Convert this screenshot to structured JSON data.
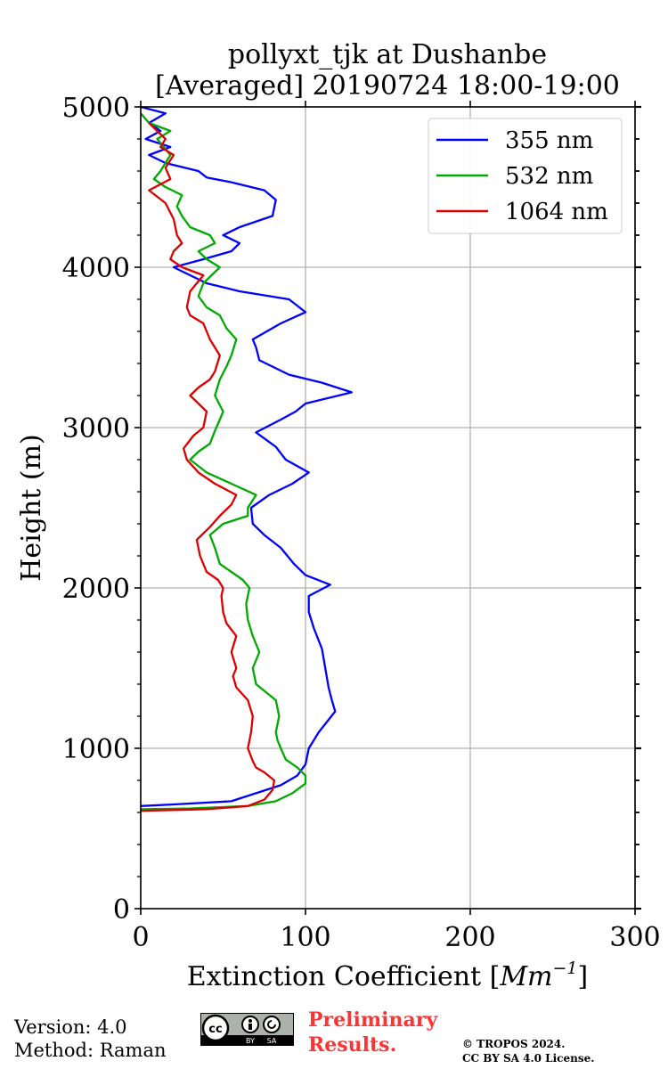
{
  "chart_data": {
    "type": "line",
    "title": "pollyxt_tjk at Dushanbe",
    "subtitle": "[Averaged] 20190724 18:00-19:00",
    "xlabel_prefix": "Extinction Coefficient [",
    "xlabel_unit": "Mm",
    "xlabel_exp": "−1",
    "xlabel_suffix": "]",
    "ylabel": "Height (m)",
    "xlim": [
      0,
      300
    ],
    "ylim": [
      0,
      5000
    ],
    "xticks": [
      0,
      100,
      200,
      300
    ],
    "yticks": [
      0,
      1000,
      2000,
      3000,
      4000,
      5000
    ],
    "xtick_labels": [
      "0",
      "100",
      "200",
      "300"
    ],
    "ytick_labels": [
      "0",
      "1000",
      "2000",
      "3000",
      "4000",
      "5000"
    ],
    "grid": true,
    "legend_position": "top-right",
    "series": [
      {
        "name": "355 nm",
        "color": "#0000ff",
        "points": [
          [
            0,
            640
          ],
          [
            20,
            650
          ],
          [
            55,
            670
          ],
          [
            70,
            720
          ],
          [
            85,
            770
          ],
          [
            95,
            830
          ],
          [
            100,
            900
          ],
          [
            102,
            1000
          ],
          [
            105,
            1050
          ],
          [
            108,
            1100
          ],
          [
            118,
            1230
          ],
          [
            116,
            1300
          ],
          [
            114,
            1380
          ],
          [
            112,
            1500
          ],
          [
            110,
            1620
          ],
          [
            105,
            1750
          ],
          [
            102,
            1850
          ],
          [
            102,
            1950
          ],
          [
            115,
            2020
          ],
          [
            100,
            2080
          ],
          [
            93,
            2150
          ],
          [
            85,
            2250
          ],
          [
            75,
            2330
          ],
          [
            68,
            2400
          ],
          [
            67,
            2500
          ],
          [
            78,
            2580
          ],
          [
            92,
            2650
          ],
          [
            102,
            2720
          ],
          [
            88,
            2800
          ],
          [
            82,
            2880
          ],
          [
            70,
            2970
          ],
          [
            85,
            3050
          ],
          [
            94,
            3100
          ],
          [
            100,
            3150
          ],
          [
            128,
            3220
          ],
          [
            110,
            3280
          ],
          [
            90,
            3330
          ],
          [
            72,
            3420
          ],
          [
            70,
            3500
          ],
          [
            68,
            3550
          ],
          [
            85,
            3650
          ],
          [
            100,
            3720
          ],
          [
            90,
            3800
          ],
          [
            60,
            3850
          ],
          [
            40,
            3900
          ],
          [
            30,
            3950
          ],
          [
            20,
            4000
          ],
          [
            38,
            4050
          ],
          [
            55,
            4100
          ],
          [
            60,
            4150
          ],
          [
            50,
            4200
          ],
          [
            60,
            4250
          ],
          [
            80,
            4320
          ],
          [
            82,
            4420
          ],
          [
            75,
            4480
          ],
          [
            55,
            4530
          ],
          [
            40,
            4560
          ],
          [
            35,
            4600
          ],
          [
            15,
            4650
          ],
          [
            5,
            4700
          ],
          [
            18,
            4750
          ],
          [
            3,
            4800
          ],
          [
            12,
            4850
          ],
          [
            5,
            4900
          ],
          [
            15,
            4960
          ],
          [
            0,
            5000
          ]
        ]
      },
      {
        "name": "532 nm",
        "color": "#00aa00",
        "points": [
          [
            0,
            620
          ],
          [
            30,
            625
          ],
          [
            65,
            640
          ],
          [
            82,
            670
          ],
          [
            92,
            720
          ],
          [
            100,
            780
          ],
          [
            100,
            830
          ],
          [
            95,
            880
          ],
          [
            88,
            930
          ],
          [
            85,
            1000
          ],
          [
            83,
            1050
          ],
          [
            82,
            1100
          ],
          [
            84,
            1200
          ],
          [
            82,
            1300
          ],
          [
            70,
            1400
          ],
          [
            68,
            1500
          ],
          [
            72,
            1600
          ],
          [
            68,
            1700
          ],
          [
            65,
            1800
          ],
          [
            64,
            1900
          ],
          [
            66,
            2000
          ],
          [
            62,
            2050
          ],
          [
            55,
            2100
          ],
          [
            48,
            2150
          ],
          [
            45,
            2250
          ],
          [
            42,
            2330
          ],
          [
            50,
            2400
          ],
          [
            65,
            2450
          ],
          [
            65,
            2500
          ],
          [
            70,
            2580
          ],
          [
            55,
            2650
          ],
          [
            40,
            2720
          ],
          [
            30,
            2800
          ],
          [
            35,
            2850
          ],
          [
            42,
            2900
          ],
          [
            45,
            2980
          ],
          [
            48,
            3050
          ],
          [
            50,
            3100
          ],
          [
            45,
            3200
          ],
          [
            48,
            3300
          ],
          [
            52,
            3380
          ],
          [
            55,
            3450
          ],
          [
            58,
            3550
          ],
          [
            52,
            3620
          ],
          [
            48,
            3700
          ],
          [
            40,
            3750
          ],
          [
            35,
            3820
          ],
          [
            38,
            3900
          ],
          [
            48,
            4000
          ],
          [
            40,
            4050
          ],
          [
            35,
            4100
          ],
          [
            45,
            4150
          ],
          [
            42,
            4200
          ],
          [
            30,
            4250
          ],
          [
            25,
            4320
          ],
          [
            22,
            4380
          ],
          [
            25,
            4450
          ],
          [
            15,
            4500
          ],
          [
            8,
            4550
          ],
          [
            12,
            4600
          ],
          [
            18,
            4700
          ],
          [
            10,
            4800
          ],
          [
            18,
            4850
          ],
          [
            5,
            4900
          ],
          [
            0,
            4960
          ]
        ]
      },
      {
        "name": "1064 nm",
        "color": "#dd0000",
        "points": [
          [
            0,
            610
          ],
          [
            40,
            620
          ],
          [
            65,
            640
          ],
          [
            75,
            680
          ],
          [
            80,
            740
          ],
          [
            81,
            800
          ],
          [
            75,
            850
          ],
          [
            70,
            880
          ],
          [
            68,
            920
          ],
          [
            65,
            1000
          ],
          [
            66,
            1050
          ],
          [
            67,
            1100
          ],
          [
            68,
            1200
          ],
          [
            65,
            1300
          ],
          [
            58,
            1380
          ],
          [
            56,
            1450
          ],
          [
            58,
            1500
          ],
          [
            55,
            1600
          ],
          [
            58,
            1700
          ],
          [
            52,
            1780
          ],
          [
            50,
            1850
          ],
          [
            49,
            1950
          ],
          [
            50,
            2000
          ],
          [
            47,
            2050
          ],
          [
            40,
            2100
          ],
          [
            36,
            2200
          ],
          [
            34,
            2300
          ],
          [
            42,
            2380
          ],
          [
            48,
            2450
          ],
          [
            55,
            2520
          ],
          [
            58,
            2580
          ],
          [
            45,
            2650
          ],
          [
            35,
            2720
          ],
          [
            28,
            2800
          ],
          [
            26,
            2870
          ],
          [
            32,
            2950
          ],
          [
            38,
            3000
          ],
          [
            40,
            3100
          ],
          [
            35,
            3150
          ],
          [
            30,
            3200
          ],
          [
            35,
            3250
          ],
          [
            42,
            3300
          ],
          [
            45,
            3350
          ],
          [
            48,
            3450
          ],
          [
            42,
            3550
          ],
          [
            38,
            3650
          ],
          [
            30,
            3700
          ],
          [
            28,
            3750
          ],
          [
            30,
            3850
          ],
          [
            38,
            3950
          ],
          [
            25,
            4000
          ],
          [
            18,
            4050
          ],
          [
            20,
            4100
          ],
          [
            25,
            4150
          ],
          [
            22,
            4200
          ],
          [
            20,
            4300
          ],
          [
            15,
            4400
          ],
          [
            5,
            4480
          ],
          [
            18,
            4550
          ],
          [
            15,
            4620
          ],
          [
            20,
            4700
          ],
          [
            12,
            4750
          ],
          [
            15,
            4800
          ],
          [
            10,
            4850
          ],
          [
            5,
            4900
          ]
        ]
      }
    ]
  },
  "footer": {
    "version": "Version: 4.0",
    "method": "Method: Raman",
    "preliminary_line1": "Preliminary",
    "preliminary_line2": "Results.",
    "copyright_line1": "© TROPOS 2024.",
    "copyright_line2": "CC BY SA 4.0 License.",
    "license_badge": {
      "cc": "cc",
      "by": "BY",
      "sa": "SA"
    }
  }
}
